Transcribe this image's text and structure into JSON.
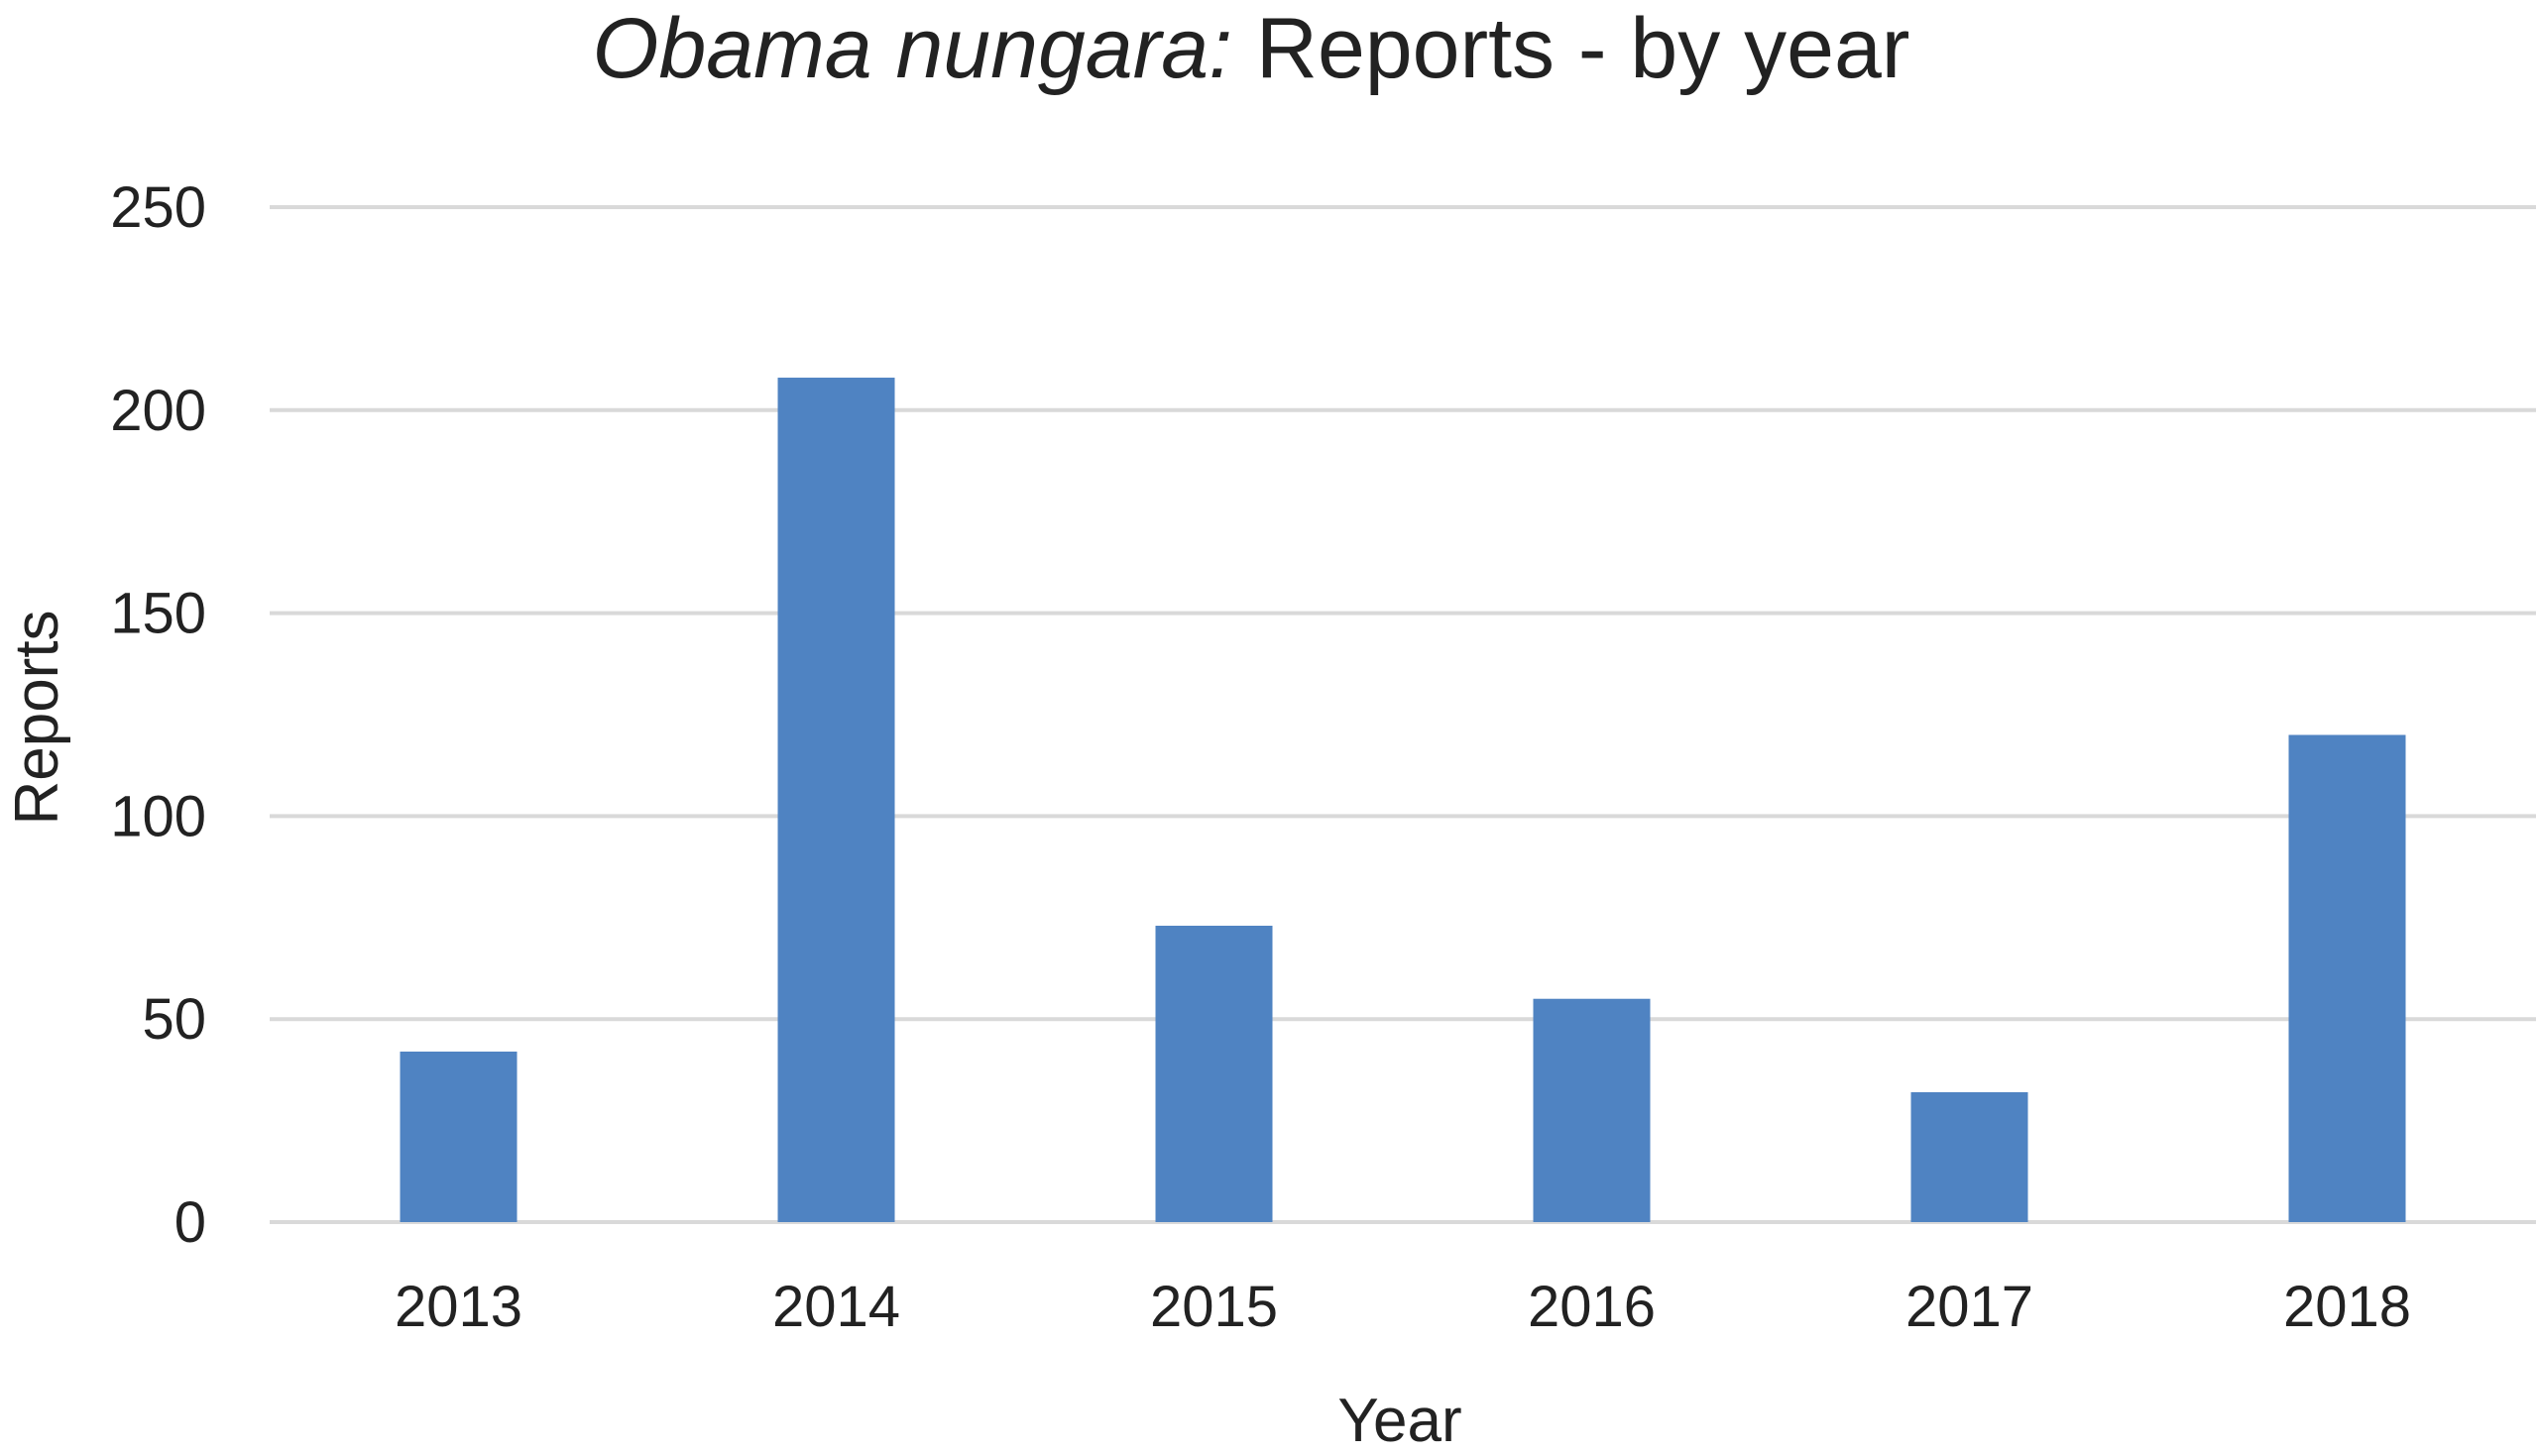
{
  "chart_data": {
    "type": "bar",
    "title_italic": "Obama nungara:",
    "title_rest": " Reports - by year",
    "xlabel": "Year",
    "ylabel": "Reports",
    "categories": [
      "2013",
      "2014",
      "2015",
      "2016",
      "2017",
      "2018"
    ],
    "values": [
      42,
      208,
      73,
      55,
      32,
      120
    ],
    "ylim": [
      0,
      250
    ],
    "yticks": [
      0,
      50,
      100,
      150,
      200,
      250
    ],
    "grid": true,
    "legend": "none",
    "bar_color": "#4f83c2",
    "grid_color": "#d9d9d9",
    "text_color": "#222222"
  }
}
